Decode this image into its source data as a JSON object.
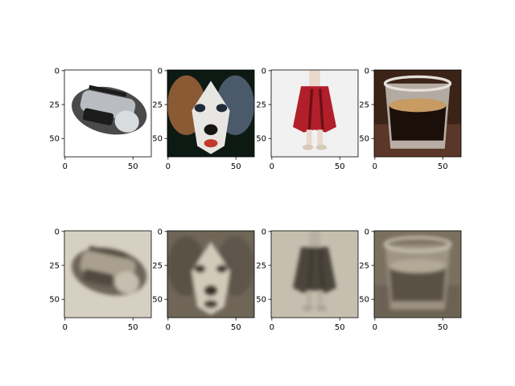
{
  "chart_data": {
    "type": "image_grid",
    "rows": 2,
    "cols": 4,
    "image_size": [
      64,
      64
    ],
    "xticks": [
      0,
      50
    ],
    "yticks": [
      0,
      25,
      50
    ],
    "panels": [
      {
        "row": 0,
        "col": 0,
        "content": "radio",
        "bg": "#ffffff",
        "palette": {
          "body": "#4a4a4a",
          "panel": "#b9bcc0",
          "dark": "#1c1c1c",
          "light": "#d9dcdf"
        }
      },
      {
        "row": 0,
        "col": 1,
        "content": "dog",
        "bg": "#0d1a14",
        "palette": {
          "face": "#e8e6e2",
          "left": "#8a5a35",
          "right": "#4b5a6a",
          "eye": "#1e2a36",
          "nose": "#151515",
          "mouth": "#c23a2c"
        }
      },
      {
        "row": 0,
        "col": 2,
        "content": "skirt",
        "bg": "#f1f1f1",
        "palette": {
          "skirt": "#b11f2a",
          "dark": "#6d0f17",
          "legs": "#e9d9cc",
          "shoe": "#d8cab9"
        }
      },
      {
        "row": 0,
        "col": 3,
        "content": "coffee-glass",
        "bg": "#3b2318",
        "palette": {
          "wood": "#5a3728",
          "glass": "#c9c3bb",
          "crema": "#c79b62",
          "coffee": "#1b0f0a",
          "rim": "#e5e1da"
        }
      },
      {
        "row": 1,
        "col": 0,
        "content": "radio",
        "bg": "#d6d0c2",
        "palette": {
          "body": "#6d6558",
          "panel": "#a9a08f",
          "dark": "#524a40",
          "light": "#c6bfb0"
        }
      },
      {
        "row": 1,
        "col": 1,
        "content": "dog",
        "bg": "#6f6658",
        "palette": {
          "face": "#d2cab9",
          "left": "#5a5245",
          "right": "#5f574b",
          "eye": "#413a32",
          "nose": "#39322b",
          "mouth": "#4a4238"
        }
      },
      {
        "row": 1,
        "col": 2,
        "content": "skirt",
        "bg": "#c6bfb0",
        "palette": {
          "skirt": "#4b443b",
          "dark": "#3a342d",
          "legs": "#b8b0a1",
          "shoe": "#a9a192"
        }
      },
      {
        "row": 1,
        "col": 3,
        "content": "coffee-glass",
        "bg": "#7a7060",
        "palette": {
          "wood": "#6c6253",
          "glass": "#a49b8b",
          "crema": "#b3aa98",
          "coffee": "#5a5144",
          "rim": "#cfc8b9"
        }
      }
    ]
  }
}
